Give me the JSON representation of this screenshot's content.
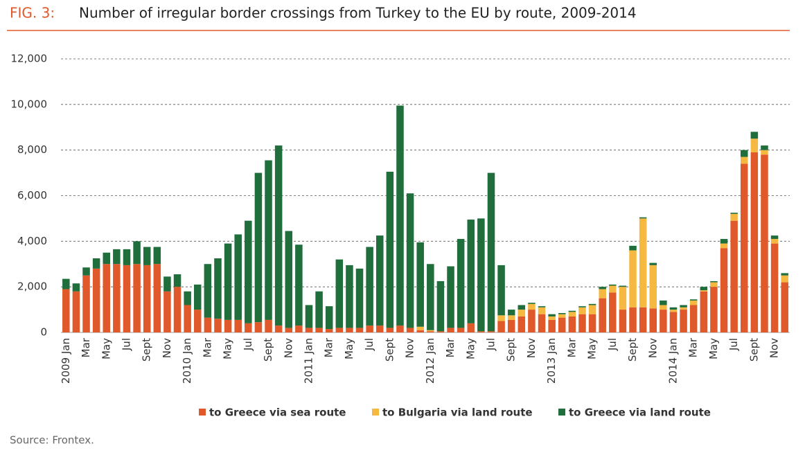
{
  "chart_data": {
    "type": "stacked_bar",
    "figure_label": "FIG. 3:",
    "title": "Number of irregular border crossings from Turkey to the EU by route, 2009-2014",
    "source": "Source: Frontex.",
    "categories": [
      "2009 Jan",
      null,
      "Mar",
      null,
      "May",
      null,
      "Jul",
      null,
      "Sept",
      null,
      "Nov",
      null,
      "2010 Jan",
      null,
      "Mar",
      null,
      "May",
      null,
      "Jul",
      null,
      "Sept",
      null,
      "Nov",
      null,
      "2011 Jan",
      null,
      "Mar",
      null,
      "May",
      null,
      "Jul",
      null,
      "Sept",
      null,
      "Nov",
      null,
      "2012 Jan",
      null,
      "Mar",
      null,
      "May",
      null,
      "Jul",
      null,
      "Sept",
      null,
      "Nov",
      null,
      "2013 Jan",
      null,
      "Mar",
      null,
      "May",
      null,
      "Jul",
      null,
      "Sept",
      null,
      "Nov",
      null,
      "2014 Jan",
      null,
      "Mar",
      null,
      "May",
      null,
      "Jul",
      null,
      "Sept",
      null,
      "Nov",
      null
    ],
    "series": [
      {
        "name": "to Greece via sea route",
        "color": "#e0592a",
        "values": [
          1900,
          1800,
          2500,
          2800,
          3000,
          3000,
          2950,
          3000,
          2950,
          3000,
          1800,
          2000,
          1200,
          1000,
          650,
          600,
          550,
          550,
          400,
          450,
          550,
          300,
          200,
          300,
          200,
          200,
          150,
          200,
          200,
          200,
          300,
          300,
          200,
          300,
          200,
          100,
          50,
          50,
          200,
          200,
          400,
          50,
          50,
          500,
          550,
          700,
          1000,
          800,
          550,
          650,
          700,
          800,
          800,
          1500,
          1750,
          1000,
          1100,
          1100,
          1050,
          1000,
          900,
          1000,
          1200,
          1800,
          2000,
          3700,
          4900,
          7400,
          7900,
          7800,
          3900,
          2200
        ]
      },
      {
        "name": "to Bulgaria via land route",
        "color": "#f5b942",
        "values": [
          0,
          0,
          0,
          0,
          0,
          0,
          0,
          0,
          0,
          0,
          0,
          0,
          0,
          0,
          0,
          0,
          0,
          0,
          0,
          0,
          0,
          0,
          0,
          0,
          0,
          0,
          0,
          0,
          0,
          0,
          0,
          0,
          0,
          0,
          0,
          150,
          50,
          0,
          0,
          0,
          0,
          0,
          0,
          250,
          200,
          300,
          250,
          300,
          150,
          150,
          200,
          300,
          400,
          400,
          300,
          1000,
          2500,
          3900,
          1900,
          200,
          100,
          100,
          200,
          50,
          200,
          200,
          300,
          300,
          600,
          200,
          200,
          300
        ]
      },
      {
        "name": "to Greece via land route",
        "color": "#1f6e3c",
        "values": [
          450,
          350,
          350,
          450,
          500,
          650,
          700,
          1000,
          800,
          750,
          650,
          550,
          600,
          1100,
          2350,
          2650,
          3350,
          3750,
          4500,
          6550,
          7000,
          7900,
          4250,
          3550,
          1000,
          1600,
          1000,
          3000,
          2750,
          2600,
          3450,
          3950,
          6850,
          9650,
          5900,
          3700,
          2900,
          2200,
          2700,
          3900,
          4550,
          4950,
          6950,
          2200,
          250,
          200,
          50,
          50,
          100,
          50,
          50,
          50,
          50,
          100,
          50,
          50,
          200,
          50,
          100,
          200,
          100,
          100,
          50,
          150,
          50,
          200,
          50,
          300,
          300,
          200,
          150,
          100
        ]
      }
    ],
    "ylim": [
      0,
      12000
    ],
    "yticks": [
      0,
      {
        "value": 2000,
        "label": "2,000"
      },
      {
        "value": 4000,
        "label": "4,000"
      },
      {
        "value": 6000,
        "label": "6,000"
      },
      {
        "value": 8000,
        "label": "8,000"
      },
      {
        "value": 10000,
        "label": "10,000"
      },
      {
        "value": 12000,
        "label": "12,000"
      }
    ],
    "grid": true
  }
}
